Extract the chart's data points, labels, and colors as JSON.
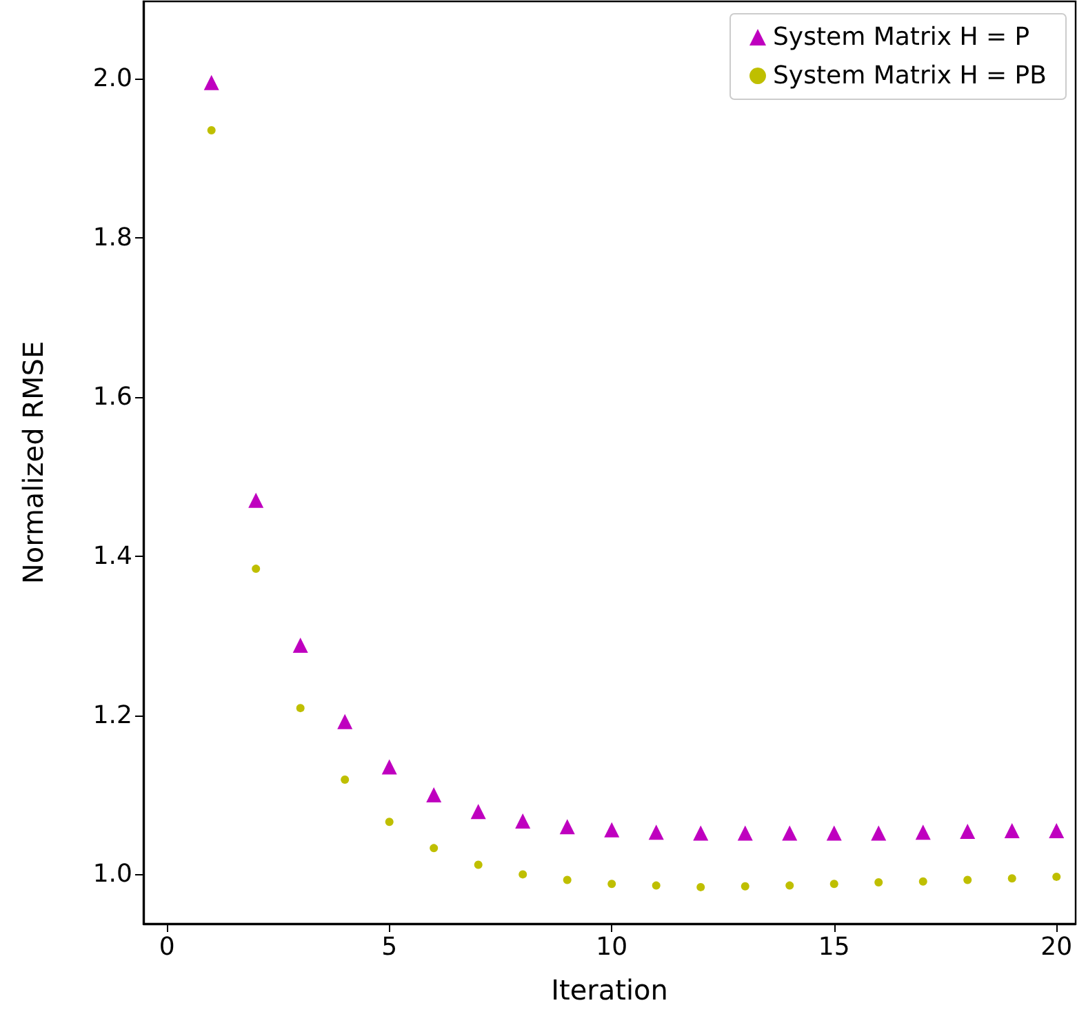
{
  "chart_data": {
    "type": "scatter",
    "xlabel": "Iteration",
    "ylabel": "Normalized RMSE",
    "x": [
      1,
      2,
      3,
      4,
      5,
      6,
      7,
      8,
      9,
      10,
      11,
      12,
      13,
      14,
      15,
      16,
      17,
      18,
      19,
      20
    ],
    "series": [
      {
        "name": "System Matrix H = P",
        "color": "#bf00bf",
        "marker": "triangle",
        "values": [
          1.995,
          1.47,
          1.288,
          1.192,
          1.135,
          1.1,
          1.079,
          1.067,
          1.06,
          1.056,
          1.053,
          1.052,
          1.052,
          1.052,
          1.052,
          1.052,
          1.053,
          1.054,
          1.055,
          1.055
        ]
      },
      {
        "name": "System Matrix H = PB",
        "color": "#bfbf00",
        "marker": "circle",
        "values": [
          1.935,
          1.384,
          1.209,
          1.119,
          1.066,
          1.033,
          1.012,
          1.0,
          0.993,
          0.988,
          0.986,
          0.984,
          0.985,
          0.986,
          0.988,
          0.99,
          0.991,
          0.993,
          0.995,
          0.997
        ]
      }
    ],
    "xlim": [
      -0.53,
      20.43
    ],
    "ylim": [
      0.938,
      2.097
    ],
    "xticks": [
      0,
      5,
      10,
      15,
      20
    ],
    "yticks": [
      {
        "value": 1,
        "label": "1.0"
      },
      {
        "value": 1.2,
        "label": "1.2"
      },
      {
        "value": 1.4,
        "label": "1.4"
      },
      {
        "value": 1.6,
        "label": "1.6"
      },
      {
        "value": 1.8,
        "label": "1.8"
      },
      {
        "value": 2,
        "label": "2.0"
      }
    ],
    "legend": "top right",
    "grid": false
  }
}
